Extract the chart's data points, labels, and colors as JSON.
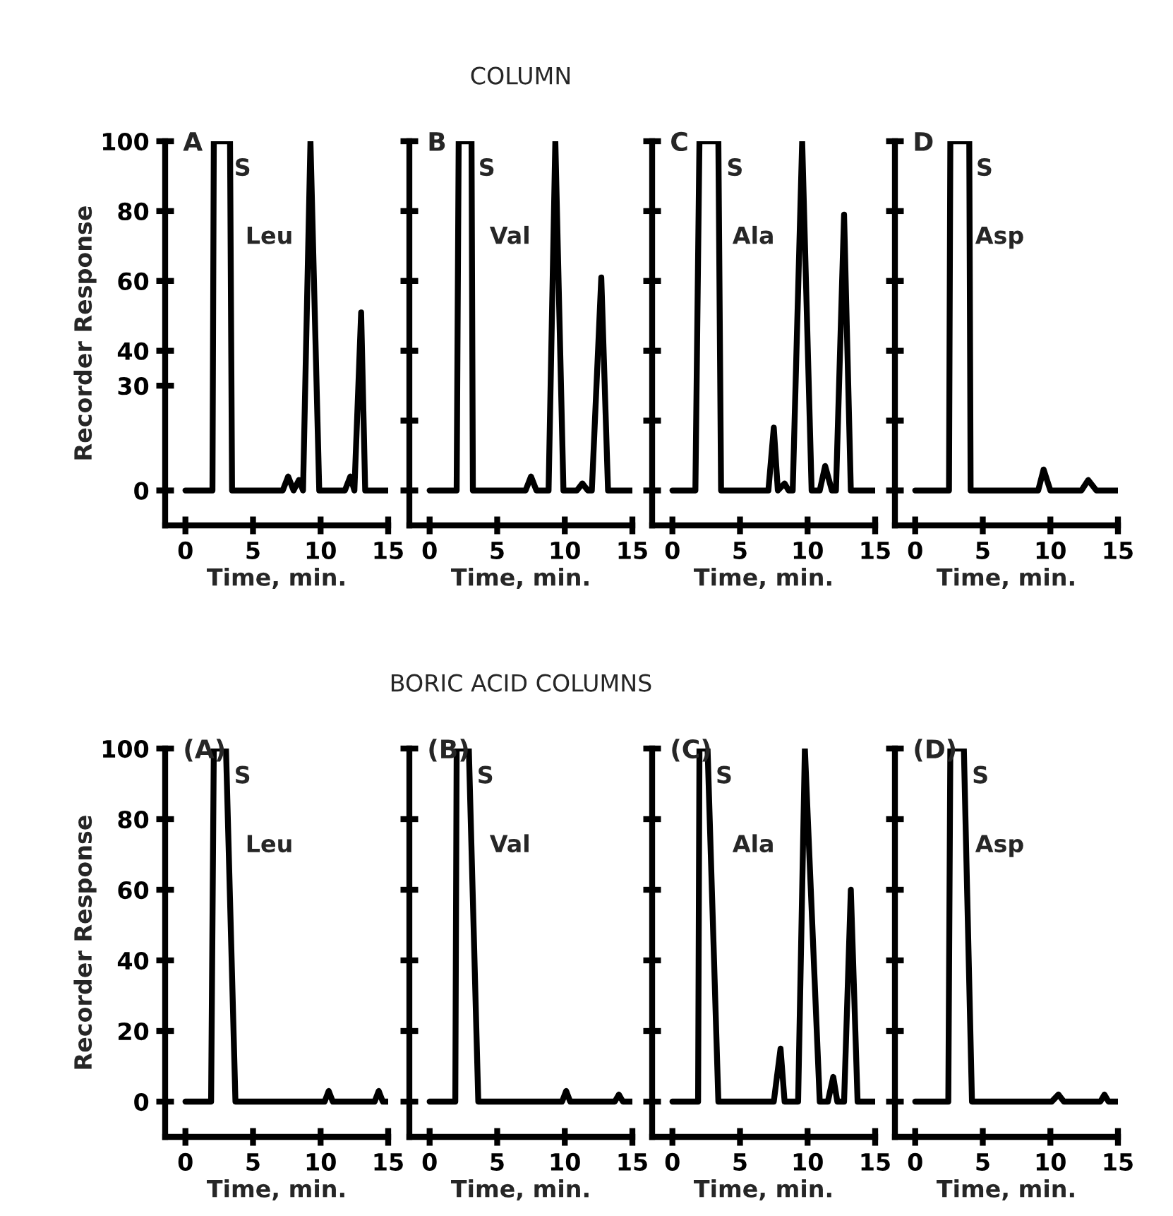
{
  "chart_data": [
    {
      "type": "line",
      "title": "A",
      "xlabel": "Time, min.",
      "ylabel": "Recorder Response",
      "annotations": [
        {
          "text": "S",
          "x": 3.6,
          "y": 92
        },
        "Leu"
      ],
      "xlim": [
        -1.5,
        15
      ],
      "ylim": [
        -10,
        100
      ],
      "xticks": [
        0,
        5,
        10,
        15
      ],
      "yticks": [
        0,
        30,
        40,
        60,
        80,
        100
      ],
      "series": [
        {
          "color": "#000000",
          "x": [
            0,
            2.0,
            2.1,
            3.3,
            3.45,
            7.2,
            7.6,
            8.0,
            8.4,
            8.7,
            9.25,
            9.9,
            11.8,
            12.2,
            12.5,
            13.0,
            13.3,
            15
          ],
          "values": [
            0,
            0,
            100,
            100,
            0,
            0,
            4,
            0,
            3,
            0,
            100,
            0,
            0,
            4,
            0,
            51,
            0,
            0
          ]
        }
      ]
    },
    {
      "type": "line",
      "subtitle": "COLUMN",
      "title": "B",
      "xlabel": "Time, min.",
      "tick_labels": "x",
      "annotations": [
        {
          "text": "S",
          "x": 3.6,
          "y": 92
        },
        "Val"
      ],
      "xlim": [
        -1.5,
        15
      ],
      "ylim": [
        -10,
        100
      ],
      "xticks": [
        0,
        5,
        10,
        15
      ],
      "yticks": [
        0,
        20,
        40,
        60,
        80,
        100
      ],
      "series": [
        {
          "color": "#000000",
          "x": [
            0,
            2.0,
            2.15,
            3.1,
            3.2,
            7.1,
            7.5,
            7.9,
            8.8,
            9.3,
            9.9,
            10.9,
            11.3,
            11.7,
            12.0,
            12.7,
            13.2,
            15
          ],
          "values": [
            0,
            0,
            100,
            100,
            0,
            0,
            4,
            0,
            0,
            100,
            0,
            0,
            2,
            0,
            0,
            61,
            0,
            0
          ]
        }
      ]
    },
    {
      "type": "line",
      "title": "C",
      "xlabel": "Time, min.",
      "tick_labels": "x",
      "annotations": [
        {
          "text": "S",
          "x": 4.0,
          "y": 92
        },
        "Ala"
      ],
      "xlim": [
        -1.5,
        15
      ],
      "ylim": [
        -10,
        100
      ],
      "xticks": [
        0,
        5,
        10,
        15
      ],
      "yticks": [
        0,
        20,
        40,
        60,
        80,
        100
      ],
      "series": [
        {
          "color": "#000000",
          "x": [
            0,
            1.7,
            2.0,
            3.4,
            3.6,
            7.1,
            7.5,
            7.8,
            8.3,
            8.6,
            8.9,
            9.6,
            10.3,
            10.9,
            11.3,
            11.8,
            12.1,
            12.7,
            13.2,
            15
          ],
          "values": [
            0,
            0,
            100,
            100,
            0,
            0,
            18,
            0,
            2,
            0,
            0,
            100,
            0,
            0,
            7,
            0,
            0,
            79,
            0,
            0
          ]
        }
      ]
    },
    {
      "type": "line",
      "title": "D",
      "xlabel": "Time, min.",
      "tick_labels": "x",
      "annotations": [
        {
          "text": "S",
          "x": 4.5,
          "y": 92
        },
        "Asp"
      ],
      "xlim": [
        -1.5,
        15
      ],
      "ylim": [
        -10,
        100
      ],
      "xticks": [
        0,
        5,
        10,
        15
      ],
      "yticks": [
        0,
        20,
        40,
        60,
        80,
        100
      ],
      "series": [
        {
          "color": "#000000",
          "x": [
            0,
            2.5,
            2.6,
            4.0,
            4.1,
            9.1,
            9.5,
            10.0,
            12.3,
            12.8,
            13.4,
            15
          ],
          "values": [
            0,
            0,
            100,
            100,
            0,
            0,
            6,
            0,
            0,
            3,
            0,
            0
          ]
        }
      ]
    },
    {
      "type": "line",
      "title": "(A)",
      "xlabel": "Time, min.",
      "ylabel": "Recorder Response",
      "annotations": [
        {
          "text": "S",
          "x": 3.6,
          "y": 92
        },
        "Leu"
      ],
      "xlim": [
        -1.5,
        15
      ],
      "ylim": [
        -10,
        100
      ],
      "xticks": [
        0,
        5,
        10,
        15
      ],
      "yticks": [
        0,
        20,
        40,
        60,
        80,
        100
      ],
      "series": [
        {
          "color": "#000000",
          "x": [
            0,
            1.9,
            2.1,
            3.0,
            3.7,
            10.3,
            10.6,
            10.9,
            14.0,
            14.3,
            14.6,
            15
          ],
          "values": [
            0,
            0,
            100,
            100,
            0,
            0,
            3,
            0,
            0,
            3,
            0,
            0
          ]
        }
      ]
    },
    {
      "type": "line",
      "subtitle": "BORIC ACID COLUMNS",
      "title": "(B)",
      "xlabel": "Time, min.",
      "tick_labels": "x",
      "annotations": [
        {
          "text": "S",
          "x": 3.5,
          "y": 92
        },
        "Val"
      ],
      "xlim": [
        -1.5,
        15
      ],
      "ylim": [
        -10,
        100
      ],
      "xticks": [
        0,
        5,
        10,
        15
      ],
      "yticks": [
        0,
        20,
        40,
        60,
        80,
        100
      ],
      "series": [
        {
          "color": "#000000",
          "x": [
            0,
            1.9,
            2.0,
            2.9,
            3.6,
            9.8,
            10.1,
            10.4,
            13.7,
            14.0,
            14.3,
            15
          ],
          "values": [
            0,
            0,
            100,
            100,
            0,
            0,
            3,
            0,
            0,
            2,
            0,
            0
          ]
        }
      ]
    },
    {
      "type": "line",
      "title": "(C)",
      "xlabel": "Time, min.",
      "tick_labels": "x",
      "annotations": [
        {
          "text": "S",
          "x": 3.2,
          "y": 92
        },
        "Ala"
      ],
      "xlim": [
        -1.5,
        15
      ],
      "ylim": [
        -10,
        100
      ],
      "xticks": [
        0,
        5,
        10,
        15
      ],
      "yticks": [
        0,
        20,
        40,
        60,
        80,
        100
      ],
      "series": [
        {
          "color": "#000000",
          "x": [
            0,
            1.9,
            2.0,
            2.6,
            3.4,
            7.5,
            8.0,
            8.3,
            9.3,
            9.8,
            10.9,
            11.5,
            11.9,
            12.2,
            12.7,
            13.2,
            13.7,
            15
          ],
          "values": [
            0,
            0,
            100,
            100,
            0,
            0,
            15,
            0,
            0,
            100,
            0,
            0,
            7,
            0,
            0,
            60,
            0,
            0
          ]
        }
      ]
    },
    {
      "type": "line",
      "title": "(D)",
      "xlabel": "Time, min.",
      "tick_labels": "x",
      "annotations": [
        {
          "text": "S",
          "x": 4.2,
          "y": 92
        },
        "Asp"
      ],
      "xlim": [
        -1.5,
        15
      ],
      "ylim": [
        -10,
        100
      ],
      "xticks": [
        0,
        5,
        10,
        15
      ],
      "yticks": [
        0,
        20,
        40,
        60,
        80,
        100
      ],
      "series": [
        {
          "color": "#000000",
          "x": [
            0,
            2.45,
            2.6,
            3.6,
            4.2,
            10.1,
            10.6,
            11.0,
            13.7,
            14.0,
            14.3,
            15
          ],
          "values": [
            0,
            0,
            100,
            100,
            0,
            0,
            2,
            0,
            0,
            2,
            0,
            0
          ]
        }
      ]
    }
  ]
}
